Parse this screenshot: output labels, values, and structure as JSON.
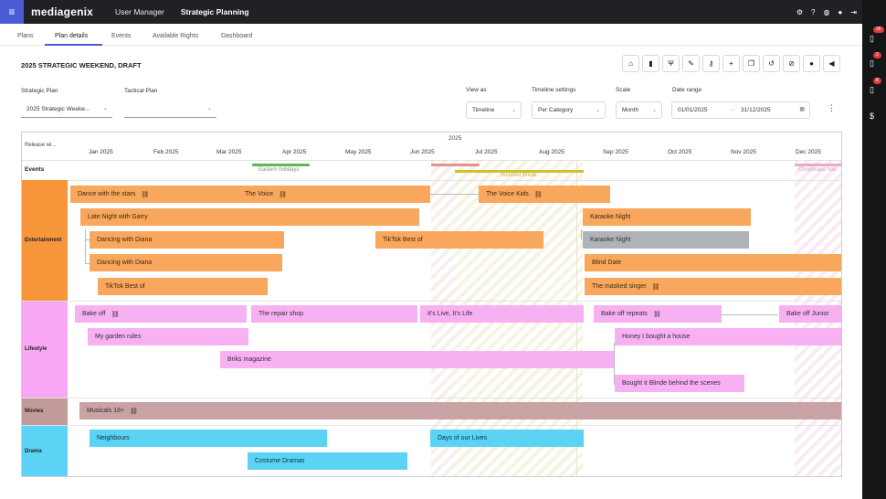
{
  "topbar": {
    "menu_icon": "hamburger-icon",
    "logo": "mediagenix",
    "nav": [
      "User Manager",
      "Strategic Planning"
    ],
    "icons": [
      "gear-icon",
      "help-icon",
      "globe-icon",
      "user-icon",
      "logout-icon"
    ]
  },
  "rightbar": {
    "items": [
      {
        "icon": "clipboard-icon",
        "badge": "36"
      },
      {
        "icon": "clipboard-icon",
        "badge": "2"
      },
      {
        "icon": "clipboard-icon",
        "badge": "8"
      },
      {
        "icon": "dollar-icon",
        "badge": ""
      }
    ]
  },
  "tabs": [
    "Plans",
    "Plan details",
    "Events",
    "Available Rights",
    "Dashboard"
  ],
  "active_tab": "Plan details",
  "plan_title": "2025 STRATEGIC WEEKEND, DRAFT",
  "toolbar_icons": [
    "lock-icon",
    "delete-icon",
    "merge-icon",
    "edit-icon",
    "key-icon",
    "add-icon",
    "copy-icon",
    "history-icon",
    "hide-icon",
    "comment-icon",
    "announce-icon"
  ],
  "filters": {
    "strategic_plan": {
      "label": "Strategic Plan",
      "value": "2025 Strategic Weeke..."
    },
    "tactical_plan": {
      "label": "Tactical Plan",
      "value": ""
    },
    "view_as": {
      "label": "View as",
      "value": "Timeline"
    },
    "timeline_settings": {
      "label": "Timeline settings",
      "value": "Per Category"
    },
    "scale": {
      "label": "Scale",
      "value": "Month"
    },
    "date_range": {
      "label": "Date range",
      "from": "01/01/2025",
      "arrow": "→",
      "to": "31/12/2025"
    }
  },
  "gantt": {
    "release_label": "Release wi...",
    "year": "2025",
    "months": [
      "Jan 2025",
      "Feb 2025",
      "Mar 2025",
      "Apr 2025",
      "May 2025",
      "Jun 2025",
      "Jul 2025",
      "Aug 2025",
      "Sep 2025",
      "Oct 2025",
      "Nov 2025",
      "Dec 2025"
    ],
    "events_label": "Events",
    "events": [
      {
        "name": "Eastern holidays",
        "color": "#5cb85c"
      },
      {
        "name": "",
        "color": "#e8908a"
      },
      {
        "name": "Summer break",
        "color": "#cfc030"
      },
      {
        "name": "Christmass holi",
        "color": "#e9a8cc"
      }
    ],
    "categories": [
      {
        "name": "Entertainment",
        "color": "#f7953a"
      },
      {
        "name": "Lifestyle",
        "color": "#f7a7f3"
      },
      {
        "name": "Movies",
        "color": "#c29a9a"
      },
      {
        "name": "Drama",
        "color": "#5ad3f5"
      }
    ],
    "bars": [
      {
        "name": "Dance with the stars",
        "category": "Entertainment",
        "linked": true
      },
      {
        "name": "The Voice",
        "category": "Entertainment",
        "linked": true
      },
      {
        "name": "The Voice Kids",
        "category": "Entertainment",
        "linked": true
      },
      {
        "name": "Late Night with Garry",
        "category": "Entertainment",
        "linked": false
      },
      {
        "name": "Karaoke Night",
        "category": "Entertainment",
        "linked": false
      },
      {
        "name": "Dancing with Diana",
        "category": "Entertainment",
        "linked": false
      },
      {
        "name": "TikTok Best of",
        "category": "Entertainment",
        "linked": false
      },
      {
        "name": "Karaoke Night",
        "category": "Entertainment",
        "linked": false,
        "disabled": true
      },
      {
        "name": "Dancing with Diana",
        "category": "Entertainment",
        "linked": false
      },
      {
        "name": "Blind Date",
        "category": "Entertainment",
        "linked": false
      },
      {
        "name": "TikTok Best of",
        "category": "Entertainment",
        "linked": false
      },
      {
        "name": "The masked singer",
        "category": "Entertainment",
        "linked": true
      },
      {
        "name": "Bake off",
        "category": "Lifestyle",
        "linked": true
      },
      {
        "name": "The repair shop",
        "category": "Lifestyle",
        "linked": false
      },
      {
        "name": "It's Live, It's Life",
        "category": "Lifestyle",
        "linked": false
      },
      {
        "name": "Bake off repeats",
        "category": "Lifestyle",
        "linked": true
      },
      {
        "name": "Bake off Junior",
        "category": "Lifestyle",
        "linked": false
      },
      {
        "name": "My garden rules",
        "category": "Lifestyle",
        "linked": false
      },
      {
        "name": "Honey I bought a house",
        "category": "Lifestyle",
        "linked": false
      },
      {
        "name": "Briks magazine",
        "category": "Lifestyle",
        "linked": false
      },
      {
        "name": "Bought it Blinde behind the scenes",
        "category": "Lifestyle",
        "linked": false
      },
      {
        "name": "Musicals 18+",
        "category": "Movies",
        "linked": true
      },
      {
        "name": "Neighbours",
        "category": "Drama",
        "linked": false
      },
      {
        "name": "Days of our Lives",
        "category": "Drama",
        "linked": false
      },
      {
        "name": "Costume Dramas",
        "category": "Drama",
        "linked": false
      }
    ]
  }
}
